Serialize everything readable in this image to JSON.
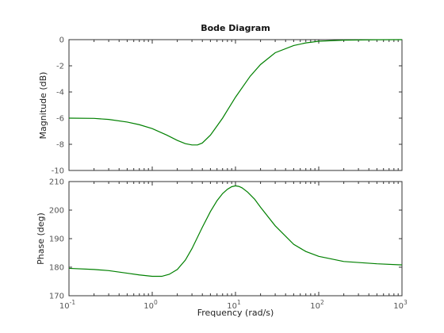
{
  "chart_data": {
    "type": "line",
    "title": "Bode Diagram",
    "xlabel": "Frequency  (rad/s)",
    "xscale": "log",
    "xlim": [
      0.1,
      1000
    ],
    "grid": false,
    "panels": [
      {
        "name": "magnitude",
        "ylabel": "Magnitude (dB)",
        "ylim": [
          -10,
          0
        ],
        "yticks": [
          0,
          -2,
          -4,
          -6,
          -8,
          -10
        ],
        "series": [
          {
            "color": "#008000",
            "x": [
              0.1,
              0.2,
              0.3,
              0.5,
              0.7,
              1.0,
              1.5,
              2.0,
              2.5,
              3.0,
              3.5,
              4.0,
              5.0,
              6.0,
              7.0,
              8.0,
              10,
              15,
              20,
              30,
              50,
              70,
              100,
              200,
              500,
              1000
            ],
            "y": [
              -6.0,
              -6.02,
              -6.1,
              -6.3,
              -6.5,
              -6.8,
              -7.3,
              -7.7,
              -7.95,
              -8.05,
              -8.05,
              -7.9,
              -7.3,
              -6.6,
              -6.0,
              -5.4,
              -4.4,
              -2.8,
              -1.9,
              -1.0,
              -0.45,
              -0.25,
              -0.12,
              -0.04,
              -0.01,
              0.0
            ]
          }
        ]
      },
      {
        "name": "phase",
        "ylabel": "Phase (deg)",
        "ylim": [
          170,
          210
        ],
        "yticks": [
          210,
          200,
          190,
          180,
          170
        ],
        "series": [
          {
            "color": "#008000",
            "x": [
              0.1,
              0.2,
              0.3,
              0.5,
              0.7,
              1.0,
              1.3,
              1.6,
              2.0,
              2.5,
              3.0,
              4.0,
              5.0,
              6.0,
              7.0,
              8.0,
              9.0,
              10,
              11,
              12,
              14,
              17,
              20,
              30,
              50,
              70,
              100,
              200,
              500,
              1000
            ],
            "y": [
              179.6,
              179.2,
              178.8,
              177.9,
              177.3,
              176.8,
              176.8,
              177.5,
              179.2,
              182.5,
              186.5,
              194.0,
              199.5,
              203.3,
              205.8,
              207.3,
              208.2,
              208.5,
              208.3,
              207.8,
              206.3,
              203.8,
              201.0,
              194.5,
              188.0,
              185.5,
              183.8,
              182.0,
              181.2,
              180.8
            ]
          }
        ]
      }
    ],
    "xticks": [
      {
        "base": "10",
        "exp": "-1",
        "value": 0.1
      },
      {
        "base": "10",
        "exp": "0",
        "value": 1
      },
      {
        "base": "10",
        "exp": "1",
        "value": 10
      },
      {
        "base": "10",
        "exp": "2",
        "value": 100
      },
      {
        "base": "10",
        "exp": "3",
        "value": 1000
      }
    ]
  }
}
